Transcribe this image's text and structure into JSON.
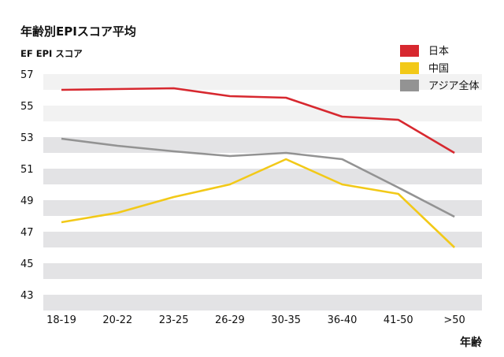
{
  "chart_data": {
    "type": "line",
    "title": "年齢別EPIスコア平均",
    "ylabel": "EF EPI スコア",
    "xlabel": "年齢",
    "categories": [
      "18-19",
      "20-22",
      "23-25",
      "26-29",
      "30-35",
      "36-40",
      "41-50",
      ">50"
    ],
    "ylim": [
      42,
      58
    ],
    "yticks": [
      43,
      45,
      47,
      49,
      51,
      53,
      55,
      57
    ],
    "grid": "alternating horizontal bands",
    "legend_position": "top-right",
    "series": [
      {
        "name": "日本",
        "color": "#d7282f",
        "values": [
          56.0,
          56.05,
          56.1,
          55.6,
          55.5,
          54.3,
          54.1,
          52.0
        ]
      },
      {
        "name": "中国",
        "color": "#f2c918",
        "values": [
          47.6,
          48.2,
          49.2,
          50.0,
          51.6,
          50.0,
          49.4,
          46.0
        ]
      },
      {
        "name": "アジア全体",
        "color": "#939393",
        "values": [
          52.9,
          52.45,
          52.1,
          51.8,
          52.0,
          51.6,
          49.8,
          47.95
        ]
      }
    ]
  }
}
